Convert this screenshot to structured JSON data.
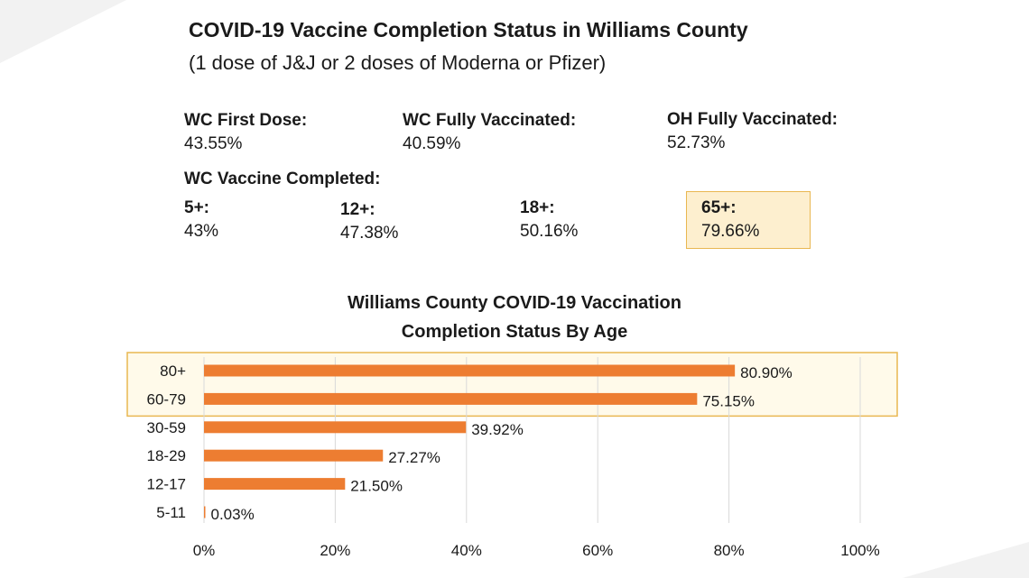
{
  "header": {
    "title": "COVID-19 Vaccine Completion Status in Williams County",
    "subtitle": "(1 dose of J&J or 2 doses of Moderna or Pfizer)"
  },
  "stats": {
    "wc_first_dose": {
      "label": "WC First Dose:",
      "value": "43.55%"
    },
    "wc_fully_vaccinated": {
      "label": "WC Fully Vaccinated:",
      "value": "40.59%"
    },
    "oh_fully_vaccinated": {
      "label": "OH Fully Vaccinated:",
      "value": "52.73%"
    }
  },
  "completed": {
    "label": "WC Vaccine Completed:",
    "groups": [
      {
        "label": "5+:",
        "value": "43%"
      },
      {
        "label": "12+:",
        "value": "47.38%"
      },
      {
        "label": "18+:",
        "value": "50.16%"
      },
      {
        "label": "65+:",
        "value": "79.66%"
      }
    ]
  },
  "colors": {
    "bar": "#ed7d31",
    "highlight_fill": "#fdefcf",
    "highlight_border": "#e9b751",
    "grid": "#d9d9d9"
  },
  "chart_data": {
    "type": "bar",
    "orientation": "horizontal",
    "title_lines": [
      "Williams County COVID-19 Vaccination",
      "Completion Status By Age"
    ],
    "categories": [
      "80+",
      "60-79",
      "30-59",
      "18-29",
      "12-17",
      "5-11"
    ],
    "values": [
      80.9,
      75.15,
      39.92,
      27.27,
      21.5,
      0.03
    ],
    "data_labels": [
      "80.90%",
      "75.15%",
      "39.92%",
      "27.27%",
      "21.50%",
      "0.03%"
    ],
    "xlim": [
      0,
      100
    ],
    "x_ticks": [
      0,
      20,
      40,
      60,
      80,
      100
    ],
    "x_tick_labels": [
      "0%",
      "20%",
      "40%",
      "60%",
      "80%",
      "100%"
    ],
    "grid": true,
    "highlighted_categories": [
      "80+",
      "60-79"
    ]
  }
}
